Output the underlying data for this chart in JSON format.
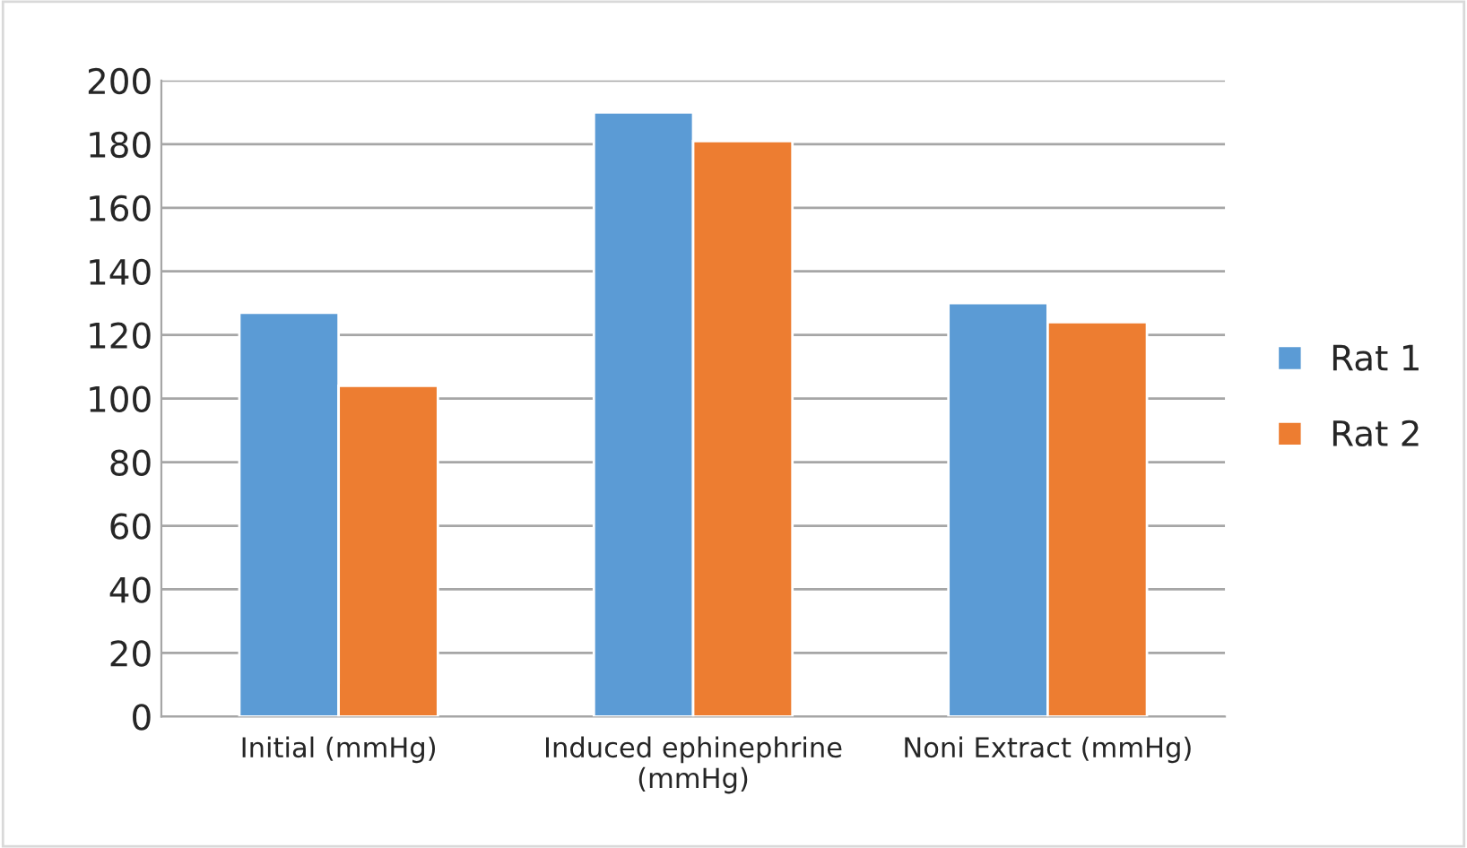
{
  "chart_data": {
    "type": "bar",
    "categories": [
      "Initial (mmHg)",
      "Induced ephinephrine (mmHg)",
      "Noni Extract (mmHg)"
    ],
    "series": [
      {
        "name": "Rat 1",
        "color": "#5b9bd5",
        "values": [
          127,
          190,
          130
        ]
      },
      {
        "name": "Rat 2",
        "color": "#ed7d31",
        "values": [
          104,
          181,
          124
        ]
      }
    ],
    "ylim": [
      0,
      200
    ],
    "yticks": [
      0,
      20,
      40,
      60,
      80,
      100,
      120,
      140,
      160,
      180,
      200
    ],
    "grid": "y",
    "legend": "right"
  }
}
